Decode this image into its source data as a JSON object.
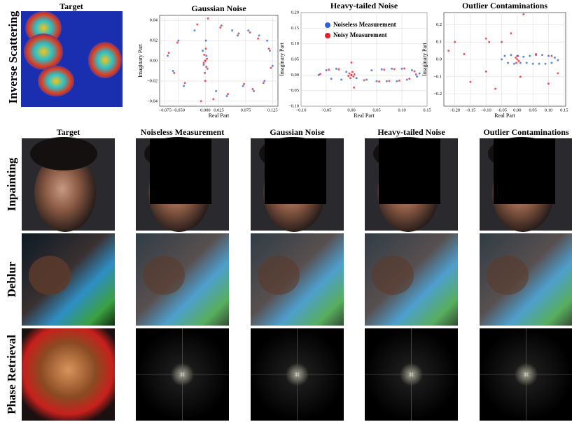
{
  "top_row": {
    "row_label": "Inverse Scattering",
    "target_title": "Target"
  },
  "chart_data": [
    {
      "type": "scatter",
      "title": "Gaussian Noise",
      "xlabel": "Real Part",
      "ylabel": "Imaginary Part",
      "xlim": [
        -0.085,
        0.135
      ],
      "ylim": [
        -0.045,
        0.045
      ],
      "grid": true,
      "xticks": [
        {
          "value": -0.075,
          "label": "−0.075"
        },
        {
          "value": -0.05,
          "label": "−0.050"
        },
        {
          "value": 0,
          "label": "0.000"
        },
        0.025,
        0.075,
        0.125
      ],
      "yticks": [
        {
          "value": 0.04,
          "label": "0.04"
        },
        {
          "value": 0.02,
          "label": "0.02"
        },
        {
          "value": 0,
          "label": "0.00"
        },
        {
          "value": -0.02,
          "label": "−0.02"
        },
        {
          "value": -0.04,
          "label": "−0.04"
        }
      ],
      "series": [
        {
          "color": "#2f62d8",
          "x": [
            0,
            0.002,
            -0.003,
            0.004,
            -0.005,
            0.001,
            0.06,
            0.08,
            0.1,
            0.12,
            0.125,
            0.11,
            0.09,
            0.07,
            -0.05,
            -0.06,
            -0.04,
            0.03,
            0.04,
            -0.07,
            0.05,
            0.115,
            -0.02,
            0.02
          ],
          "values": [
            0,
            0.005,
            -0.004,
            -0.008,
            0.01,
            0.02,
            0.025,
            0.03,
            0.025,
            0.01,
            -0.005,
            -0.02,
            -0.03,
            -0.025,
            0.02,
            -0.01,
            -0.025,
            0.035,
            -0.035,
            0.005,
            0.03,
            0.02,
            0.03,
            -0.03
          ]
        },
        {
          "color": "#e8202a",
          "x": [
            0,
            -0.002,
            0.002,
            0.001,
            -0.001,
            0.003,
            -0.003,
            0.0,
            0.062,
            0.083,
            0.098,
            0.118,
            0.122,
            0.108,
            0.088,
            0.072,
            -0.052,
            -0.058,
            -0.038,
            0.028,
            0.042,
            -0.068,
            -0.015,
            0.015,
            0.005,
            -0.008
          ],
          "values": [
            0,
            0.006,
            -0.006,
            0.012,
            -0.012,
            0.002,
            -0.002,
            -0.02,
            0.027,
            0.028,
            0.022,
            0.012,
            -0.007,
            -0.022,
            -0.028,
            -0.023,
            0.018,
            -0.012,
            -0.022,
            0.033,
            -0.033,
            0.008,
            0.036,
            -0.038,
            0.042,
            -0.04
          ]
        }
      ]
    },
    {
      "type": "scatter",
      "title": "Heavy-tailed Noise",
      "xlabel": "Real Part",
      "ylabel": "Imaginary Part",
      "xlim": [
        -0.1,
        0.15
      ],
      "ylim": [
        -0.1,
        0.2
      ],
      "grid": true,
      "legend": "upper left",
      "xticks": [
        {
          "value": -0.1,
          "label": "−0.10"
        },
        {
          "value": -0.05,
          "label": "−0.05"
        },
        {
          "value": 0,
          "label": "0.00"
        },
        0.05,
        {
          "value": 0.1,
          "label": "0.10"
        },
        0.15
      ],
      "yticks": [
        {
          "value": -0.1,
          "label": "−0.10"
        },
        {
          "value": -0.05,
          "label": "−0.05"
        },
        {
          "value": 0,
          "label": "0.00"
        },
        0.05,
        {
          "value": 0.1,
          "label": "0.10"
        },
        0.15,
        {
          "value": 0.2,
          "label": "0.20"
        }
      ],
      "series": [
        {
          "name": "Noiseless Measurement",
          "color": "#2f62d8",
          "x": [
            -0.065,
            -0.05,
            -0.03,
            -0.01,
            0,
            0.01,
            0.03,
            0.05,
            0.07,
            0.09,
            0.11,
            0.13,
            0.135,
            0.12,
            0.1,
            0.08,
            0.06,
            0.04,
            -0.02,
            -0.04
          ],
          "values": [
            0,
            0.015,
            0.02,
            0.01,
            0,
            -0.01,
            -0.015,
            -0.02,
            -0.02,
            -0.02,
            -0.015,
            -0.005,
            0.005,
            0.015,
            0.02,
            0.02,
            0.018,
            0.015,
            -0.015,
            -0.012
          ]
        },
        {
          "name": "Noisy Measurement",
          "color": "#e8202a",
          "x": [
            0,
            -0.004,
            0.004,
            0.002,
            -0.002,
            0.006,
            -0.006,
            -0.062,
            -0.045,
            -0.025,
            0.025,
            0.055,
            0.075,
            0.095,
            0.115,
            0.128,
            0.125,
            0.105,
            0.085,
            0.065,
            0.0,
            0.005
          ],
          "values": [
            0,
            0.005,
            -0.005,
            0.01,
            -0.01,
            0.002,
            -0.003,
            0.003,
            0.017,
            0.018,
            -0.017,
            -0.021,
            -0.019,
            -0.018,
            -0.012,
            0.002,
            0.012,
            0.021,
            0.019,
            0.017,
            0.04,
            -0.04
          ]
        }
      ]
    },
    {
      "type": "scatter",
      "title": "Outlier Contaminations",
      "xlabel": "Real Part",
      "ylabel": "Imaginary Part",
      "xlim": [
        -0.235,
        0.155
      ],
      "ylim": [
        -0.27,
        0.27
      ],
      "grid": true,
      "xticks": [
        {
          "value": -0.2,
          "label": "−0.20"
        },
        {
          "value": -0.15,
          "label": "−0.15"
        },
        {
          "value": -0.1,
          "label": "−0.10"
        },
        {
          "value": -0.05,
          "label": "−0.05"
        },
        {
          "value": 0,
          "label": "0.00"
        },
        0.05,
        {
          "value": 0.1,
          "label": "0.10"
        },
        0.15
      ],
      "yticks": [
        {
          "value": -0.2,
          "label": "−0.2"
        },
        {
          "value": -0.1,
          "label": "−0.1"
        },
        {
          "value": 0,
          "label": "0.0"
        },
        0.1,
        0.2
      ],
      "series": [
        {
          "color": "#2f62d8",
          "x": [
            -0.05,
            -0.04,
            -0.02,
            0,
            0.02,
            0.04,
            0.06,
            0.08,
            0.1,
            0.12,
            0.13,
            0.11,
            0.09,
            0.07,
            0.05,
            0.03,
            0.01,
            -0.01,
            -0.03
          ],
          "values": [
            0,
            0.02,
            0.025,
            0.02,
            0.015,
            0.02,
            0.025,
            0.025,
            0.02,
            0.01,
            -0.005,
            -0.02,
            -0.025,
            -0.025,
            -0.025,
            -0.02,
            -0.02,
            -0.025,
            -0.02
          ]
        },
        {
          "color": "#e8202a",
          "x": [
            0,
            -0.005,
            0.005,
            0.002,
            -0.003,
            -0.22,
            -0.2,
            -0.17,
            -0.1,
            -0.09,
            -0.05,
            0.02,
            -0.15,
            -0.1,
            -0.07,
            0.1,
            0.13,
            0.01,
            -0.02,
            0.06,
            0.11
          ],
          "values": [
            0,
            0.01,
            -0.01,
            0.02,
            -0.02,
            0.05,
            0.1,
            0.03,
            0.12,
            0.1,
            0.1,
            0.26,
            -0.13,
            -0.07,
            -0.17,
            -0.14,
            -0.08,
            -0.1,
            0.15,
            0.03,
            0.02
          ]
        }
      ]
    }
  ],
  "grid": {
    "column_titles": [
      "Target",
      "Noiseless Measurement",
      "Gaussian Noise",
      "Heavy-tailed Noise",
      "Outlier Contaminations"
    ],
    "row_labels": [
      "Inpainting",
      "Deblur",
      "Phase Retrieval"
    ]
  }
}
